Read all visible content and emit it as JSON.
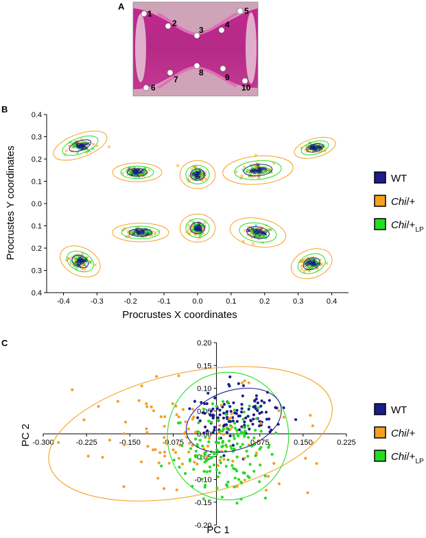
{
  "panel_labels": [
    "A",
    "B",
    "C"
  ],
  "photo": {
    "landmarks": [
      "1",
      "2",
      "3",
      "4",
      "5",
      "6",
      "7",
      "8",
      "9",
      "10"
    ]
  },
  "legend": [
    {
      "label": "WT",
      "sub": "",
      "color": "#1c1c8c"
    },
    {
      "label": "Chi/+",
      "sub": "",
      "color": "#f5a020"
    },
    {
      "label": "Chi/+",
      "sub": "LP",
      "color": "#22dd22"
    }
  ],
  "chart_data": [
    {
      "type": "scatter",
      "xlabel": "Procrustes X coordinates",
      "ylabel": "Procrustes Y coordinates",
      "xlim": [
        -0.45,
        0.45
      ],
      "ylim": [
        -0.4,
        0.4
      ],
      "xticks": [
        "-0.4",
        "-0.3",
        "-0.2",
        "-0.1",
        "0.0",
        "0.1",
        "0.2",
        "0.3",
        "0.4"
      ],
      "yticks": [
        "0.4",
        "0.3",
        "0.2",
        "0.1",
        "0.0",
        "0.1",
        "0.2",
        "0.3",
        "0.4"
      ],
      "landmark_means": [
        {
          "x": -0.35,
          "y": 0.26
        },
        {
          "x": -0.18,
          "y": 0.14
        },
        {
          "x": 0.0,
          "y": 0.13
        },
        {
          "x": 0.18,
          "y": 0.15
        },
        {
          "x": 0.35,
          "y": 0.25
        },
        {
          "x": -0.35,
          "y": -0.26
        },
        {
          "x": -0.17,
          "y": -0.13
        },
        {
          "x": 0.0,
          "y": -0.11
        },
        {
          "x": 0.18,
          "y": -0.13
        },
        {
          "x": 0.34,
          "y": -0.27
        }
      ],
      "marker": "x",
      "series": [
        "WT",
        "Chi/+",
        "Chi/+LP"
      ]
    },
    {
      "type": "scatter",
      "xlabel": "PC 1",
      "ylabel": "PC 2",
      "xlim": [
        -0.3,
        0.225
      ],
      "ylim": [
        -0.2,
        0.2
      ],
      "xticks": [
        "-0.300",
        "-0.225",
        "-0.150",
        "-0.075",
        "0.075",
        "0.150",
        "0.225"
      ],
      "yticks": [
        "0.20",
        "0.15",
        "0.10",
        "0.05",
        "0.00",
        "-0.05",
        "-0.10",
        "-0.15",
        "-0.20"
      ],
      "yzero_label": "0.00",
      "ellipses": [
        {
          "series": "Chi/+",
          "cx": -0.045,
          "cy": 0.0,
          "rx": 0.25,
          "ry": 0.135,
          "angle": -12
        },
        {
          "series": "Chi/+LP",
          "cx": 0.02,
          "cy": -0.005,
          "rx": 0.105,
          "ry": 0.14,
          "angle": 0
        },
        {
          "series": "WT",
          "cx": 0.03,
          "cy": 0.03,
          "rx": 0.085,
          "ry": 0.065,
          "angle": -18
        }
      ],
      "series": [
        "WT",
        "Chi/+",
        "Chi/+LP"
      ]
    }
  ]
}
